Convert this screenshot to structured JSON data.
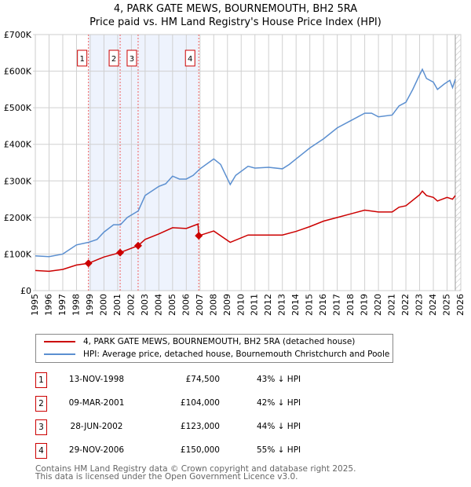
{
  "chart_data": {
    "type": "line",
    "title": "4, PARK GATE MEWS, BOURNEMOUTH, BH2 5RA",
    "subtitle": "Price paid vs. HM Land Registry's House Price Index (HPI)",
    "xlim": [
      1995,
      2026
    ],
    "ylim": [
      0,
      700000
    ],
    "y_ticks": [
      {
        "v": 0,
        "label": "£0"
      },
      {
        "v": 100000,
        "label": "£100K"
      },
      {
        "v": 200000,
        "label": "£200K"
      },
      {
        "v": 300000,
        "label": "£300K"
      },
      {
        "v": 400000,
        "label": "£400K"
      },
      {
        "v": 500000,
        "label": "£500K"
      },
      {
        "v": 600000,
        "label": "£600K"
      },
      {
        "v": 700000,
        "label": "£700K"
      }
    ],
    "x_ticks": [
      "1995",
      "1996",
      "1997",
      "1998",
      "1999",
      "2000",
      "2001",
      "2002",
      "2003",
      "2004",
      "2005",
      "2006",
      "2007",
      "2008",
      "2009",
      "2010",
      "2011",
      "2012",
      "2013",
      "2014",
      "2015",
      "2016",
      "2017",
      "2018",
      "2019",
      "2020",
      "2021",
      "2022",
      "2023",
      "2024",
      "2025",
      "2026"
    ],
    "grid": true,
    "shaded_range": [
      1998.87,
      2006.91
    ],
    "forecast_hatch_from": 2025.6,
    "series": [
      {
        "name": "4, PARK GATE MEWS, BOURNEMOUTH, BH2 5RA (detached house)",
        "color": "#cc0000",
        "x": [
          1995,
          1996,
          1997,
          1998,
          1998.87,
          2000,
          2001.18,
          2002.49,
          2003,
          2004,
          2005,
          2006,
          2006.85,
          2006.91,
          2008,
          2009.2,
          2010.5,
          2012,
          2013,
          2014,
          2015,
          2016,
          2017,
          2018,
          2019,
          2020,
          2021,
          2021.5,
          2022,
          2023,
          2023.2,
          2023.5,
          2024,
          2024.3,
          2025,
          2025.4,
          2025.6
        ],
        "y": [
          55000,
          53000,
          58000,
          70000,
          74500,
          92000,
          104000,
          123000,
          140000,
          155000,
          172000,
          170000,
          182000,
          150000,
          163000,
          132000,
          152000,
          152000,
          152000,
          162000,
          175000,
          190000,
          200000,
          210000,
          220000,
          215000,
          215000,
          228000,
          232000,
          262000,
          272000,
          260000,
          255000,
          245000,
          255000,
          250000,
          260000
        ]
      },
      {
        "name": "HPI: Average price, detached house, Bournemouth Christchurch and Poole",
        "color": "#5b8fd0",
        "x": [
          1995,
          1996,
          1997,
          1998,
          1998.87,
          1999.5,
          2000,
          2000.7,
          2001.2,
          2001.7,
          2002.5,
          2003,
          2004,
          2004.5,
          2005,
          2005.5,
          2006,
          2006.5,
          2007,
          2008,
          2008.5,
          2009.2,
          2009.6,
          2010.5,
          2011,
          2012,
          2013,
          2013.5,
          2014,
          2015,
          2016,
          2017,
          2018,
          2019,
          2019.5,
          2020,
          2021,
          2021.5,
          2022,
          2022.5,
          2023,
          2023.2,
          2023.5,
          2024,
          2024.3,
          2024.8,
          2025.2,
          2025.4,
          2025.6
        ],
        "y": [
          95000,
          93000,
          100000,
          125000,
          132000,
          140000,
          160000,
          180000,
          180000,
          200000,
          218000,
          260000,
          285000,
          292000,
          313000,
          305000,
          305000,
          315000,
          333000,
          360000,
          345000,
          290000,
          315000,
          340000,
          335000,
          337000,
          333000,
          345000,
          360000,
          390000,
          415000,
          445000,
          465000,
          485000,
          485000,
          475000,
          480000,
          505000,
          515000,
          550000,
          590000,
          605000,
          580000,
          570000,
          550000,
          565000,
          575000,
          555000,
          578000
        ]
      }
    ],
    "sales": [
      {
        "n": "1",
        "date": "13-NOV-1998",
        "x": 1998.87,
        "price": 74500,
        "price_label": "£74,500",
        "hpi": "43% ↓ HPI"
      },
      {
        "n": "2",
        "date": "09-MAR-2001",
        "x": 2001.18,
        "price": 104000,
        "price_label": "£104,000",
        "hpi": "42% ↓ HPI"
      },
      {
        "n": "3",
        "date": "28-JUN-2002",
        "x": 2002.49,
        "price": 123000,
        "price_label": "£123,000",
        "hpi": "44% ↓ HPI"
      },
      {
        "n": "4",
        "date": "29-NOV-2006",
        "x": 2006.91,
        "price": 150000,
        "price_label": "£150,000",
        "hpi": "55% ↓ HPI"
      }
    ]
  },
  "footer": {
    "line1": "Contains HM Land Registry data © Crown copyright and database right 2025.",
    "line2": "This data is licensed under the Open Government Licence v3.0."
  }
}
